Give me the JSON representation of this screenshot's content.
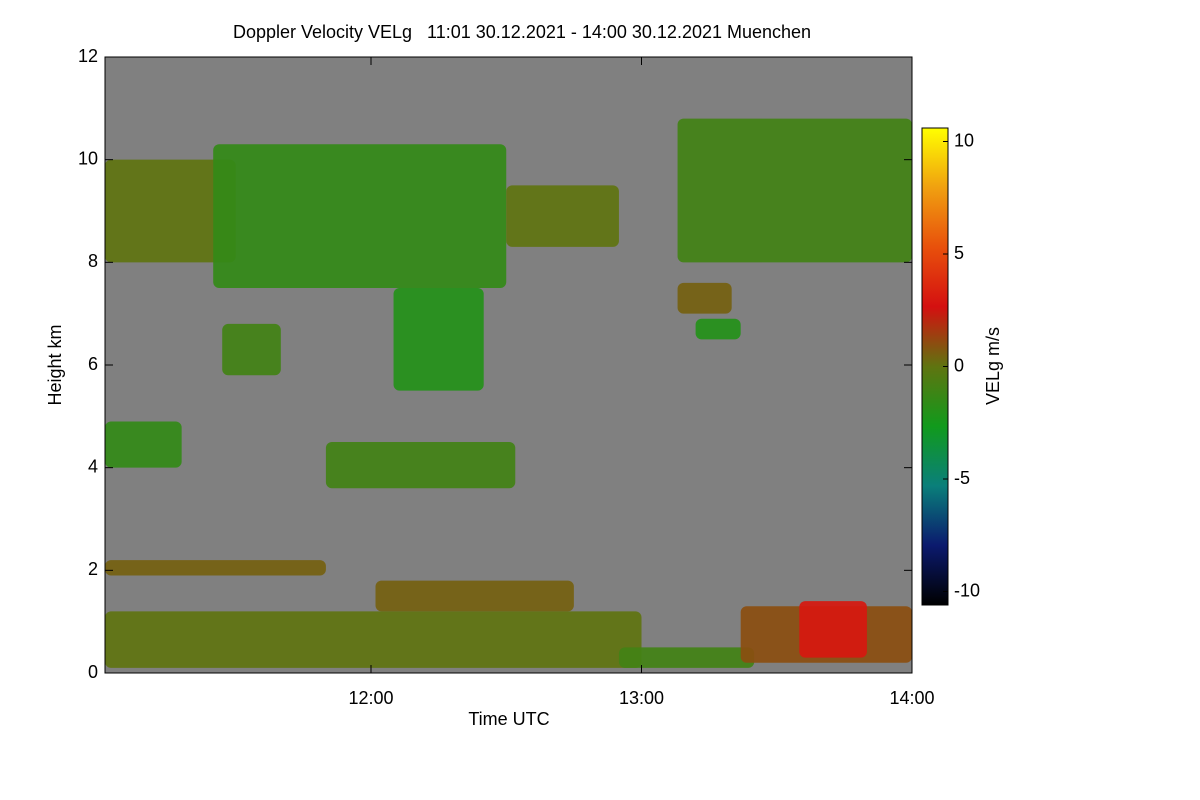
{
  "chart_data": {
    "type": "heatmap",
    "title": "Doppler Velocity VELg   11:01 30.12.2021 - 14:00 30.12.2021 Muenchen",
    "xlabel": "Time UTC",
    "ylabel": "Height km",
    "colorbar_label": "VELg m/s",
    "xlim": [
      "11:01",
      "14:00"
    ],
    "xticks": [
      "12:00",
      "13:00",
      "14:00"
    ],
    "ylim": [
      0,
      12
    ],
    "yticks": [
      0,
      2,
      4,
      6,
      8,
      10,
      12
    ],
    "zlim": [
      -10.6,
      10.6
    ],
    "zticks": [
      -10,
      -5,
      0,
      5,
      10
    ],
    "background": "#808080",
    "colormap": [
      "#000000",
      "#0b1a6e",
      "#0a7f7a",
      "#119a1c",
      "#5f7410",
      "#d41010",
      "#e8500c",
      "#f0a010",
      "#ffff00"
    ],
    "cells": [
      {
        "t": [
          "11:01",
          "11:30"
        ],
        "h": [
          8.0,
          10.0
        ],
        "value": 0
      },
      {
        "t": [
          "11:25",
          "12:30"
        ],
        "h": [
          7.5,
          10.3
        ],
        "value": -1.5
      },
      {
        "t": [
          "12:30",
          "12:55"
        ],
        "h": [
          8.3,
          9.5
        ],
        "value": 0
      },
      {
        "t": [
          "11:27",
          "11:40"
        ],
        "h": [
          5.8,
          6.8
        ],
        "value": -1
      },
      {
        "t": [
          "12:05",
          "12:25"
        ],
        "h": [
          5.5,
          7.5
        ],
        "value": -2
      },
      {
        "t": [
          "13:08",
          "13:20"
        ],
        "h": [
          7.0,
          7.6
        ],
        "value": 0.5
      },
      {
        "t": [
          "13:12",
          "13:22"
        ],
        "h": [
          6.5,
          6.9
        ],
        "value": -2
      },
      {
        "t": [
          "13:08",
          "14:00"
        ],
        "h": [
          8.0,
          10.8
        ],
        "value": -1
      },
      {
        "t": [
          "11:01",
          "11:18"
        ],
        "h": [
          4.0,
          4.9
        ],
        "value": -1.5
      },
      {
        "t": [
          "11:50",
          "12:32"
        ],
        "h": [
          3.6,
          4.5
        ],
        "value": -1
      },
      {
        "t": [
          "11:01",
          "11:50"
        ],
        "h": [
          1.9,
          2.2
        ],
        "value": 0.5
      },
      {
        "t": [
          "12:01",
          "12:45"
        ],
        "h": [
          1.2,
          1.8
        ],
        "value": 0.5
      },
      {
        "t": [
          "11:01",
          "13:00"
        ],
        "h": [
          0.1,
          1.2
        ],
        "value": 0
      },
      {
        "t": [
          "12:55",
          "13:25"
        ],
        "h": [
          0.1,
          0.5
        ],
        "value": -1
      },
      {
        "t": [
          "13:22",
          "14:00"
        ],
        "h": [
          0.2,
          1.3
        ],
        "value": 1
      },
      {
        "t": [
          "13:35",
          "13:50"
        ],
        "h": [
          0.3,
          1.4
        ],
        "value": 3
      }
    ]
  }
}
